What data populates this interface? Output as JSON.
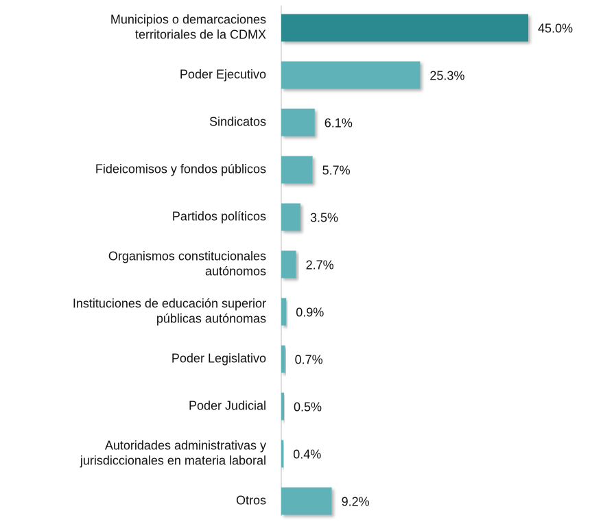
{
  "chart_data": {
    "type": "bar",
    "orientation": "horizontal",
    "categories": [
      "Municipios o demarcaciones\nterritoriales de la CDMX",
      "Poder Ejecutivo",
      "Sindicatos",
      "Fideicomisos y fondos públicos",
      "Partidos políticos",
      "Organismos constitucionales\nautónomos",
      "Instituciones de educación superior\npúblicas autónomas",
      "Poder Legislativo",
      "Poder Judicial",
      "Autoridades administrativas y\njurisdiccionales en materia laboral",
      "Otros"
    ],
    "values": [
      45.0,
      25.3,
      6.1,
      5.7,
      3.5,
      2.7,
      0.9,
      0.7,
      0.5,
      0.4,
      9.2
    ],
    "value_labels": [
      "45.0%",
      "25.3%",
      "6.1%",
      "5.7%",
      "3.5%",
      "2.7%",
      "0.9%",
      "0.7%",
      "0.5%",
      "0.4%",
      "9.2%"
    ],
    "colors": [
      "#2a8a8f",
      "#5fb3b8",
      "#5fb3b8",
      "#5fb3b8",
      "#5fb3b8",
      "#5fb3b8",
      "#5fb3b8",
      "#5fb3b8",
      "#5fb3b8",
      "#5fb3b8",
      "#5fb3b8"
    ],
    "xlim": [
      0,
      45
    ]
  }
}
